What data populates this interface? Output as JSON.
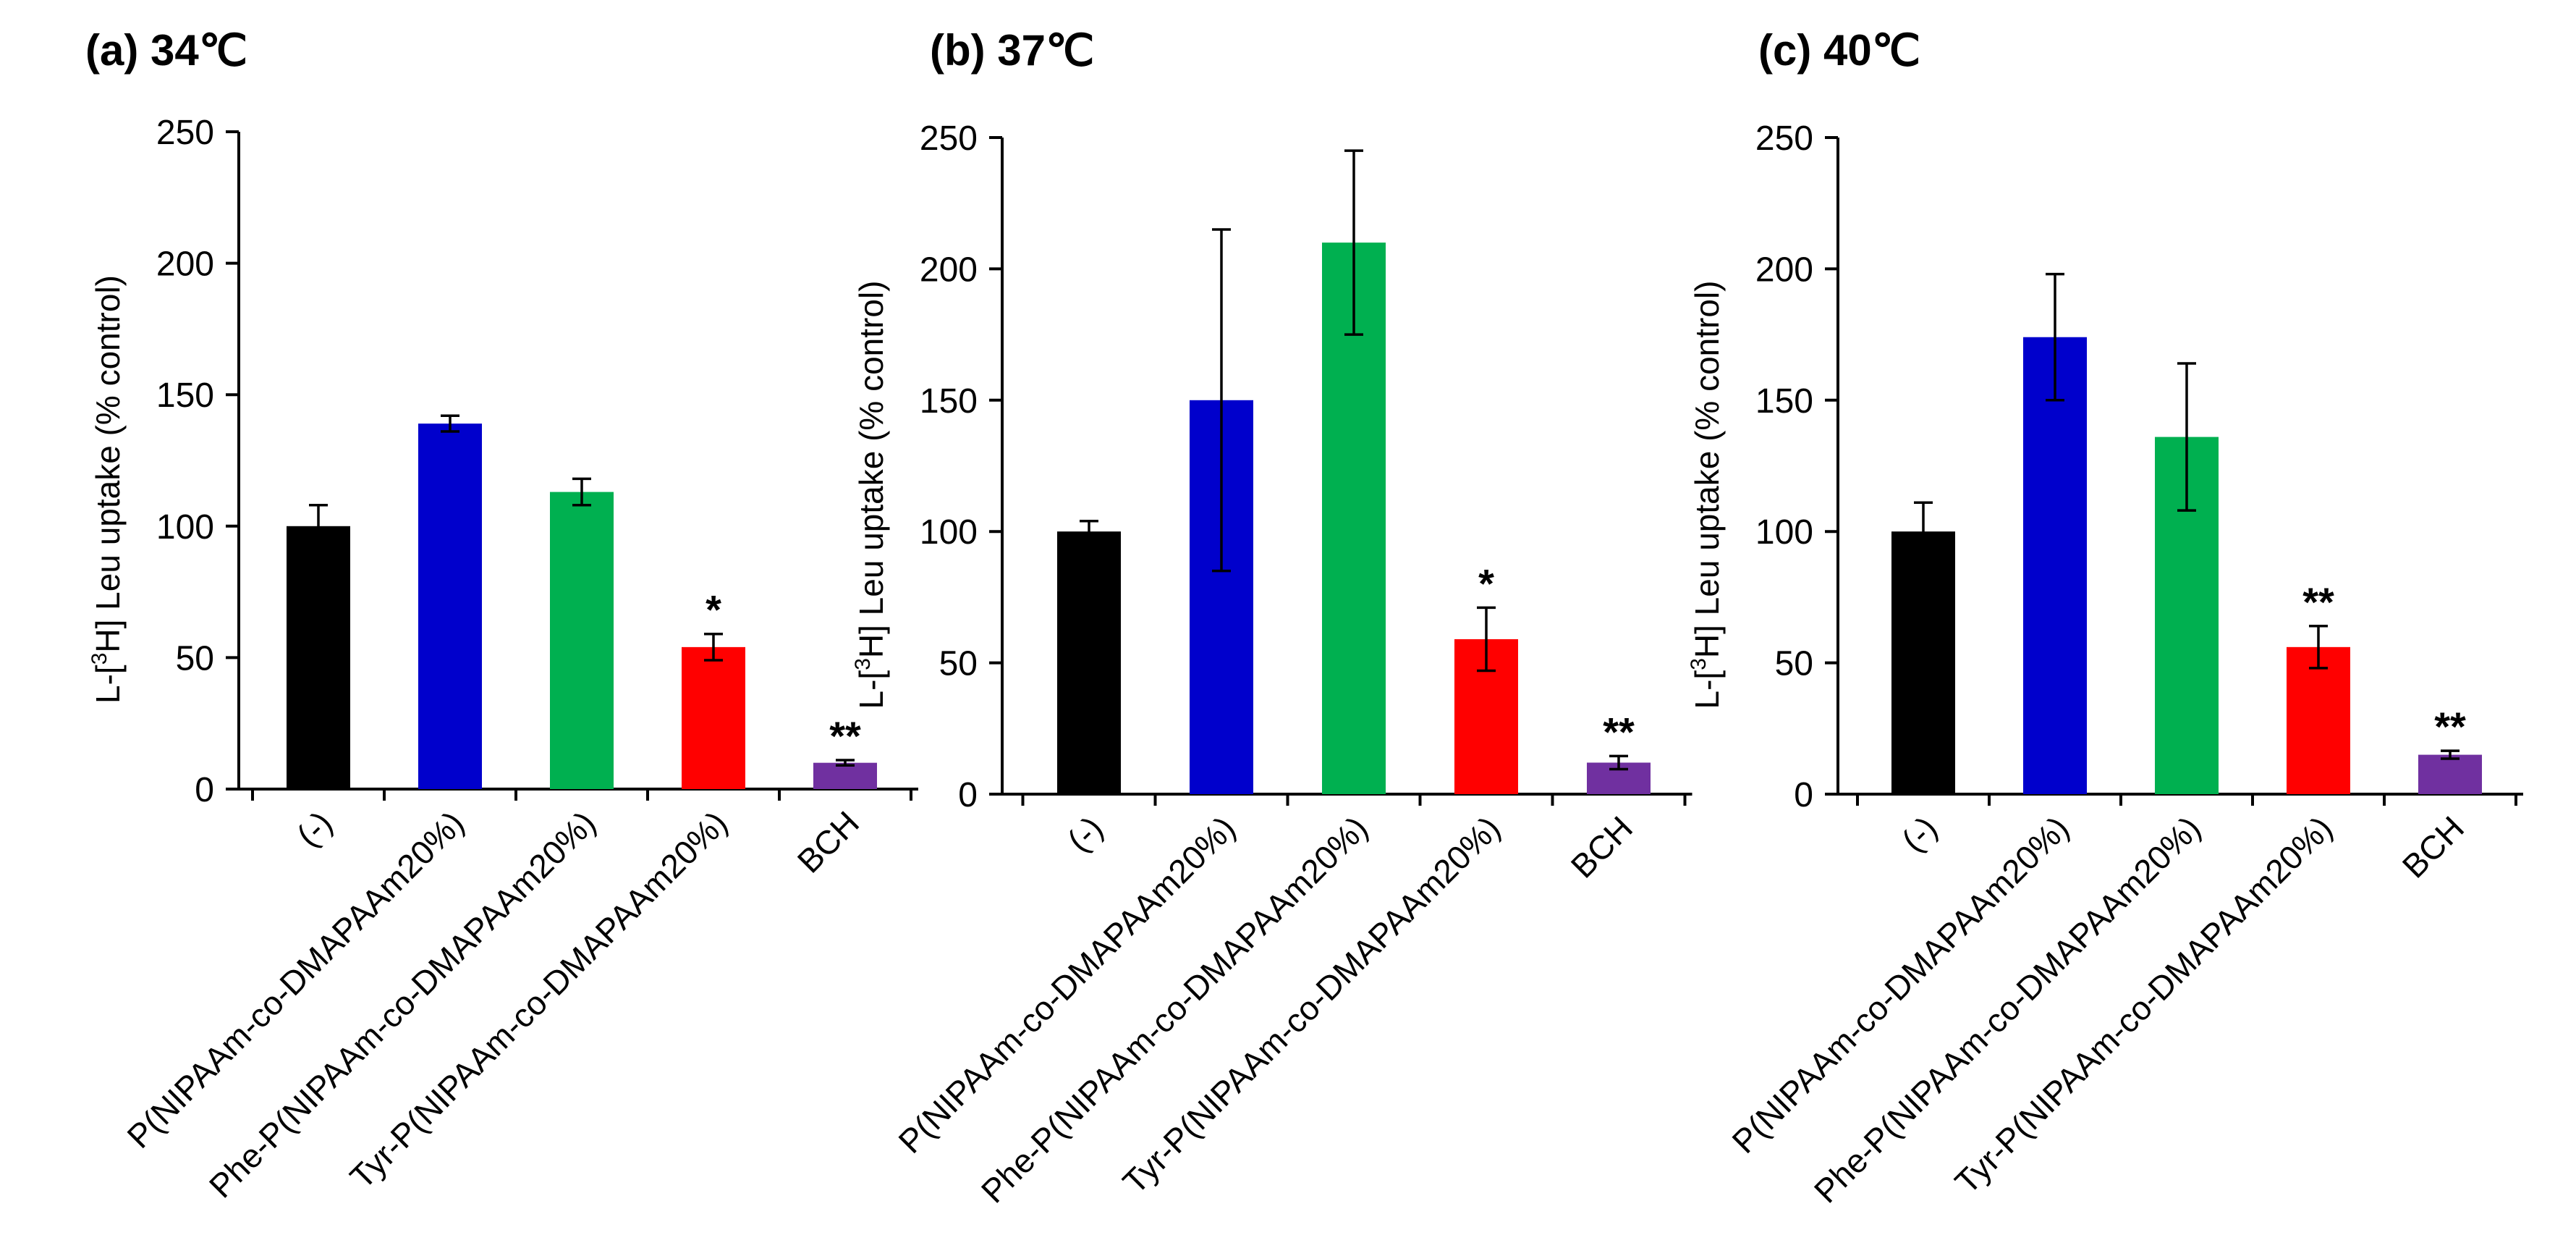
{
  "chart_data": [
    {
      "type": "bar",
      "title": "(a) 34℃",
      "ylabel": "L-[3H] Leu uptake (% control)",
      "ylabel_parts": {
        "prefix": "L-[",
        "superscript": "3",
        "suffix": "H] Leu uptake (% control)"
      },
      "xlabel": "",
      "ylim": [
        0,
        250
      ],
      "yticks": [
        0,
        50,
        100,
        150,
        200,
        250
      ],
      "categories": [
        "(-)",
        "P(NIPAAm-co-DMAPAAm20%)",
        "Phe-P(NIPAAm-co-DMAPAAm20%)",
        "Tyr-P(NIPAAm-co-DMAPAAm20%)",
        "BCH"
      ],
      "values": [
        100,
        139,
        113,
        54,
        10
      ],
      "errors": [
        8,
        3,
        5,
        5,
        1
      ],
      "significance": [
        "",
        "",
        "",
        "*",
        "**"
      ],
      "colors": [
        "#000000",
        "#0000cc",
        "#00b050",
        "#ff0000",
        "#7030a0"
      ]
    },
    {
      "type": "bar",
      "title": "(b) 37℃",
      "ylabel": "L-[3H] Leu uptake (% control)",
      "ylabel_parts": {
        "prefix": "L-[",
        "superscript": "3",
        "suffix": "H] Leu uptake (% control)"
      },
      "xlabel": "",
      "ylim": [
        0,
        250
      ],
      "yticks": [
        0,
        50,
        100,
        150,
        200,
        250
      ],
      "categories": [
        "(-)",
        "P(NIPAAm-co-DMAPAAm20%)",
        "Phe-P(NIPAAm-co-DMAPAAm20%)",
        "Tyr-P(NIPAAm-co-DMAPAAm20%)",
        "BCH"
      ],
      "values": [
        100,
        150,
        210,
        59,
        12
      ],
      "errors": [
        4,
        65,
        35,
        12,
        2.5
      ],
      "significance": [
        "",
        "",
        "",
        "*",
        "**"
      ],
      "colors": [
        "#000000",
        "#0000cc",
        "#00b050",
        "#ff0000",
        "#7030a0"
      ]
    },
    {
      "type": "bar",
      "title": "(c) 40℃",
      "ylabel": "L-[3H] Leu uptake (% control)",
      "ylabel_parts": {
        "prefix": "L-[",
        "superscript": "3",
        "suffix": "H] Leu uptake (% control)"
      },
      "xlabel": "",
      "ylim": [
        0,
        250
      ],
      "yticks": [
        0,
        50,
        100,
        150,
        200,
        250
      ],
      "categories": [
        "(-)",
        "P(NIPAAm-co-DMAPAAm20%)",
        "Phe-P(NIPAAm-co-DMAPAAm20%)",
        "Tyr-P(NIPAAm-co-DMAPAAm20%)",
        "BCH"
      ],
      "values": [
        100,
        174,
        136,
        56,
        15
      ],
      "errors": [
        11,
        24,
        28,
        8,
        1.5
      ],
      "significance": [
        "",
        "",
        "",
        "**",
        "**"
      ],
      "colors": [
        "#000000",
        "#0000cc",
        "#00b050",
        "#ff0000",
        "#7030a0"
      ]
    }
  ]
}
